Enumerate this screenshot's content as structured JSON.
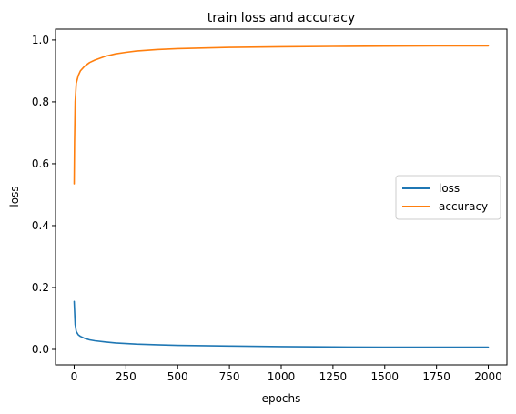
{
  "chart_data": {
    "type": "line",
    "title": "train loss and accuracy",
    "xlabel": "epochs",
    "ylabel": "loss",
    "xlim": [
      -90,
      2090
    ],
    "ylim": [
      -0.05,
      1.035
    ],
    "xticks": [
      0,
      250,
      500,
      750,
      1000,
      1250,
      1500,
      1750,
      2000
    ],
    "xtick_labels": [
      "0",
      "250",
      "500",
      "750",
      "1000",
      "1250",
      "1500",
      "1750",
      "2000"
    ],
    "yticks": [
      0.0,
      0.2,
      0.4,
      0.6,
      0.8,
      1.0
    ],
    "ytick_labels": [
      "0.0",
      "0.2",
      "0.4",
      "0.6",
      "0.8",
      "1.0"
    ],
    "grid": false,
    "legend_position": "center-right",
    "series": [
      {
        "name": "loss",
        "color": "#1f77b4",
        "x": [
          0,
          5,
          10,
          20,
          30,
          50,
          75,
          100,
          150,
          200,
          300,
          400,
          500,
          750,
          1000,
          1250,
          1500,
          1750,
          2000
        ],
        "y": [
          0.155,
          0.08,
          0.058,
          0.047,
          0.042,
          0.036,
          0.031,
          0.028,
          0.024,
          0.021,
          0.017,
          0.015,
          0.013,
          0.011,
          0.009,
          0.008,
          0.007,
          0.007,
          0.007
        ]
      },
      {
        "name": "accuracy",
        "color": "#ff7f0e",
        "x": [
          0,
          2,
          5,
          10,
          20,
          30,
          50,
          75,
          100,
          150,
          200,
          250,
          300,
          400,
          500,
          750,
          1000,
          1250,
          1500,
          1750,
          2000
        ],
        "y": [
          0.535,
          0.67,
          0.8,
          0.86,
          0.885,
          0.9,
          0.915,
          0.927,
          0.935,
          0.947,
          0.955,
          0.96,
          0.964,
          0.969,
          0.972,
          0.976,
          0.978,
          0.979,
          0.98,
          0.981,
          0.981
        ]
      }
    ]
  }
}
